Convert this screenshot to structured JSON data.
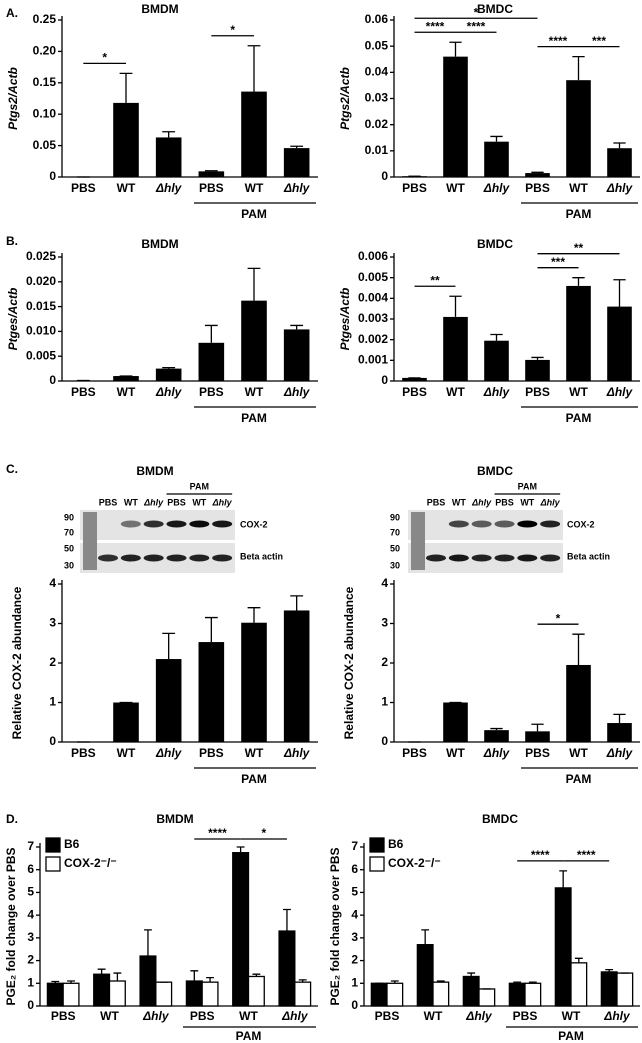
{
  "panel_labels": [
    "A.",
    "B.",
    "C.",
    "D."
  ],
  "blots": [
    {
      "title": "BMDM",
      "lanes": [
        "PBS",
        "WT",
        "Δhly",
        "PBS",
        "WT",
        "Δhly"
      ],
      "group_label": "PAM",
      "markers": [
        90,
        70,
        50,
        30
      ],
      "bands": [
        "COX-2",
        "Beta actin"
      ]
    },
    {
      "title": "BMDC",
      "lanes": [
        "PBS",
        "WT",
        "Δhly",
        "PBS",
        "WT",
        "Δhly"
      ],
      "group_label": "PAM",
      "markers": [
        90,
        70,
        50,
        30
      ],
      "bands": [
        "COX-2",
        "Beta actin"
      ]
    }
  ],
  "chart_data": [
    {
      "type": "bar",
      "title": "BMDM",
      "y_label": "Ptgs2/Actb",
      "categories": [
        "PBS",
        "WT",
        "Δhly",
        "PBS",
        "WT",
        "Δhly"
      ],
      "group_label": "PAM",
      "ylim": [
        0,
        0.25
      ],
      "yticks": [
        0,
        0.05,
        {
          "value": 0.1,
          "label": "0.10"
        },
        0.15,
        {
          "value": 0.2,
          "label": "0.20"
        },
        0.25
      ],
      "series": [
        {
          "color": "#000000",
          "values": [
            0,
            0.118,
            0.063,
            0.009,
            0.136,
            0.046
          ],
          "errors": [
            0,
            0.047,
            0.009,
            0.001,
            0.073,
            0.003
          ]
        }
      ],
      "significance": [
        {
          "from": 0,
          "to": 1,
          "label": "*"
        },
        {
          "from": 3,
          "to": 4,
          "label": "*"
        }
      ]
    },
    {
      "type": "bar",
      "title": "BMDC",
      "y_label": "Ptgs2/Actb",
      "categories": [
        "PBS",
        "WT",
        "Δhly",
        "PBS",
        "WT",
        "Δhly"
      ],
      "group_label": "PAM",
      "ylim": [
        0,
        0.06
      ],
      "yticks": [
        0,
        0.01,
        0.02,
        0.03,
        0.04,
        0.05,
        0.06
      ],
      "series": [
        {
          "color": "#000000",
          "values": [
            0.0003,
            0.046,
            0.0135,
            0.0015,
            0.037,
            0.011
          ],
          "errors": [
            0,
            0.0055,
            0.002,
            0.0003,
            0.009,
            0.002
          ]
        }
      ],
      "significance": [
        {
          "from": 0,
          "to": 1,
          "label": "****"
        },
        {
          "from": 1,
          "to": 2,
          "label": "****"
        },
        {
          "from": 0,
          "to": 3,
          "label": "*"
        },
        {
          "from": 3,
          "to": 4,
          "label": "****"
        },
        {
          "from": 4,
          "to": 5,
          "label": "***"
        }
      ]
    },
    {
      "type": "bar",
      "title": "BMDM",
      "y_label": "Ptges/Actb",
      "categories": [
        "PBS",
        "WT",
        "Δhly",
        "PBS",
        "WT",
        "Δhly"
      ],
      "group_label": "PAM",
      "ylim": [
        0,
        0.025
      ],
      "yticks": [
        0,
        0.005,
        {
          "value": 0.01,
          "label": "0.010"
        },
        0.015,
        {
          "value": 0.02,
          "label": "0.020"
        },
        0.025
      ],
      "series": [
        {
          "color": "#000000",
          "values": [
            0.0001,
            0.001,
            0.0025,
            0.0077,
            0.0162,
            0.0104
          ],
          "errors": [
            0,
            0,
            0.0002,
            0.0035,
            0.0065,
            0.0008
          ]
        }
      ],
      "significance": []
    },
    {
      "type": "bar",
      "title": "BMDC",
      "y_label": "Ptges/Actb",
      "categories": [
        "PBS",
        "WT",
        "Δhly",
        "PBS",
        "WT",
        "Δhly"
      ],
      "group_label": "PAM",
      "ylim": [
        0,
        0.006
      ],
      "yticks": [
        0,
        0.001,
        0.002,
        0.003,
        0.004,
        0.005,
        0.006
      ],
      "series": [
        {
          "color": "#000000",
          "values": [
            0.00015,
            0.0031,
            0.00195,
            0.00102,
            0.0046,
            0.0036
          ],
          "errors": [
            0,
            0.001,
            0.0003,
            0.00012,
            0.0004,
            0.0013
          ]
        }
      ],
      "significance": [
        {
          "from": 0,
          "to": 1,
          "label": "**"
        },
        {
          "from": 3,
          "to": 4,
          "label": "***"
        },
        {
          "from": 3,
          "to": 5,
          "label": "**"
        }
      ]
    },
    {
      "type": "bar",
      "y_label": "Relative COX-2 abundance",
      "categories": [
        "PBS",
        "WT",
        "Δhly",
        "PBS",
        "WT",
        "Δhly"
      ],
      "group_label": "PAM",
      "ylim": [
        0,
        4
      ],
      "yticks": [
        0,
        1,
        2,
        3,
        4
      ],
      "series": [
        {
          "color": "#000000",
          "values": [
            0,
            1,
            2.1,
            2.53,
            3.02,
            3.33
          ],
          "errors": [
            0,
            0,
            0.65,
            0.62,
            0.38,
            0.37
          ]
        }
      ],
      "significance": []
    },
    {
      "type": "bar",
      "y_label": "Relative COX-2 abundance",
      "categories": [
        "PBS",
        "WT",
        "Δhly",
        "PBS",
        "WT",
        "Δhly"
      ],
      "group_label": "PAM",
      "ylim": [
        0,
        4
      ],
      "yticks": [
        0,
        1,
        2,
        3,
        4
      ],
      "series": [
        {
          "color": "#000000",
          "values": [
            0,
            1,
            0.3,
            0.27,
            1.95,
            0.48
          ],
          "errors": [
            0,
            0,
            0.04,
            0.18,
            0.78,
            0.22
          ]
        }
      ],
      "significance": [
        {
          "from": 3,
          "to": 4,
          "label": "*"
        }
      ]
    },
    {
      "type": "bar",
      "title": "BMDM",
      "y_label": "PGE₂ fold change over PBS",
      "categories": [
        "PBS",
        "WT",
        "Δhly",
        "PBS",
        "WT",
        "Δhly"
      ],
      "group_label": "PAM",
      "ylim": [
        0,
        7
      ],
      "yticks": [
        0,
        1,
        2,
        3,
        4,
        5,
        6,
        7
      ],
      "legend": "upper left",
      "series": [
        {
          "name": "B6",
          "color": "#000000",
          "values": [
            1.0,
            1.4,
            2.2,
            1.1,
            6.75,
            3.3
          ],
          "errors": [
            0.08,
            0.22,
            1.15,
            0.45,
            0.25,
            0.95
          ]
        },
        {
          "name": "COX-2⁻/⁻",
          "color": "#ffffff",
          "values": [
            1.0,
            1.1,
            1.05,
            1.05,
            1.3,
            1.05
          ],
          "errors": [
            0.1,
            0.35,
            0,
            0.2,
            0.1,
            0.1
          ]
        }
      ],
      "significance": [
        {
          "from": 3,
          "to": 4,
          "label": "****"
        },
        {
          "from": 4,
          "to": 5,
          "label": "*"
        }
      ]
    },
    {
      "type": "bar",
      "title": "BMDC",
      "y_label": "PGE₂ fold change over PBS",
      "categories": [
        "PBS",
        "WT",
        "Δhly",
        "PBS",
        "WT",
        "Δhly"
      ],
      "group_label": "PAM",
      "ylim": [
        0,
        7
      ],
      "yticks": [
        0,
        1,
        2,
        3,
        4,
        5,
        6,
        7
      ],
      "legend": "upper left",
      "series": [
        {
          "name": "B6",
          "color": "#000000",
          "values": [
            1.0,
            2.7,
            1.3,
            1.0,
            5.2,
            1.5
          ],
          "errors": [
            0,
            0.65,
            0.15,
            0.05,
            0.75,
            0.1
          ]
        },
        {
          "name": "COX-2⁻/⁻",
          "color": "#ffffff",
          "values": [
            1.0,
            1.05,
            0.75,
            1.0,
            1.9,
            1.45
          ],
          "errors": [
            0.1,
            0.05,
            0,
            0.05,
            0.2,
            0
          ]
        }
      ],
      "significance": [
        {
          "from": 3,
          "to": 4,
          "label": "****"
        },
        {
          "from": 4,
          "to": 5,
          "label": "****"
        }
      ]
    }
  ]
}
